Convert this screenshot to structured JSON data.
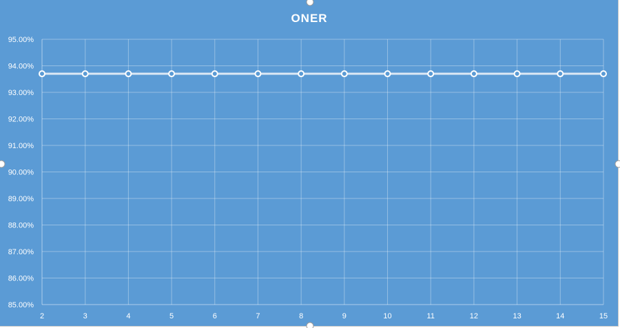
{
  "colors": {
    "plot_background": "#5b9bd5",
    "series_line": "#dce8f5",
    "marker_fill": "#5b9bd5",
    "marker_stroke": "#ffffff"
  },
  "chart_data": {
    "type": "line",
    "title": "ONER",
    "xlabel": "",
    "ylabel": "",
    "x": [
      2,
      3,
      4,
      5,
      6,
      7,
      8,
      9,
      10,
      11,
      12,
      13,
      14,
      15
    ],
    "x_tick_labels": [
      "2",
      "3",
      "4",
      "5",
      "6",
      "7",
      "8",
      "9",
      "10",
      "11",
      "12",
      "13",
      "14",
      "15"
    ],
    "y_tick_labels": [
      "85.00%",
      "86.00%",
      "87.00%",
      "88.00%",
      "89.00%",
      "90.00%",
      "91.00%",
      "92.00%",
      "93.00%",
      "94.00%",
      "95.00%"
    ],
    "y_ticks": [
      85,
      86,
      87,
      88,
      89,
      90,
      91,
      92,
      93,
      94,
      95
    ],
    "ylim": [
      85,
      95
    ],
    "grid": true,
    "legend": "none",
    "markers": "hollow-circle",
    "series": [
      {
        "values": [
          93.7,
          93.7,
          93.7,
          93.7,
          93.7,
          93.7,
          93.7,
          93.7,
          93.7,
          93.7,
          93.7,
          93.7,
          93.7,
          93.7
        ]
      }
    ]
  }
}
